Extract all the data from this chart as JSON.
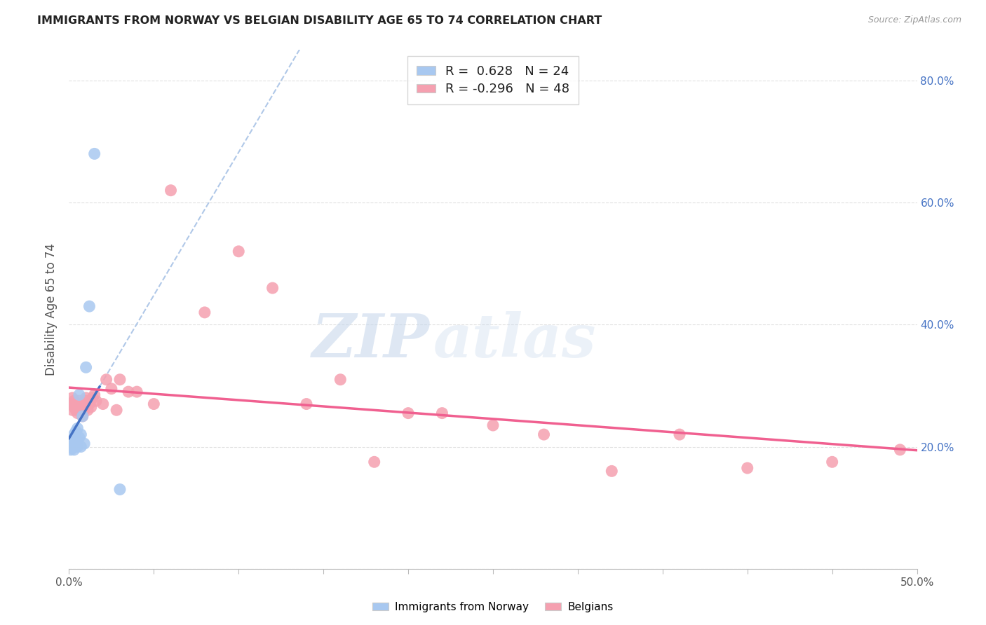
{
  "title": "IMMIGRANTS FROM NORWAY VS BELGIAN DISABILITY AGE 65 TO 74 CORRELATION CHART",
  "source": "Source: ZipAtlas.com",
  "ylabel": "Disability Age 65 to 74",
  "xlim": [
    0.0,
    0.5
  ],
  "ylim": [
    0.0,
    0.85
  ],
  "norway_R": 0.628,
  "norway_N": 24,
  "belgian_R": -0.296,
  "belgian_N": 48,
  "norway_color": "#a8c8f0",
  "belgian_color": "#f5a0b0",
  "norway_line_color": "#4472c4",
  "belgian_line_color": "#f06090",
  "trend_ext_color": "#b0c8e8",
  "watermark_zip": "ZIP",
  "watermark_atlas": "atlas",
  "background_color": "#ffffff",
  "grid_color": "#dddddd",
  "norway_points_x": [
    0.001,
    0.001,
    0.002,
    0.002,
    0.002,
    0.003,
    0.003,
    0.003,
    0.004,
    0.004,
    0.004,
    0.005,
    0.005,
    0.005,
    0.006,
    0.006,
    0.007,
    0.007,
    0.008,
    0.009,
    0.01,
    0.012,
    0.015,
    0.03
  ],
  "norway_points_y": [
    0.195,
    0.2,
    0.198,
    0.205,
    0.21,
    0.195,
    0.205,
    0.22,
    0.2,
    0.215,
    0.225,
    0.2,
    0.21,
    0.23,
    0.215,
    0.285,
    0.2,
    0.22,
    0.25,
    0.205,
    0.33,
    0.43,
    0.68,
    0.13
  ],
  "belgian_points_x": [
    0.001,
    0.002,
    0.002,
    0.003,
    0.003,
    0.004,
    0.004,
    0.005,
    0.005,
    0.006,
    0.006,
    0.007,
    0.007,
    0.008,
    0.008,
    0.009,
    0.01,
    0.01,
    0.011,
    0.012,
    0.013,
    0.014,
    0.015,
    0.016,
    0.02,
    0.022,
    0.025,
    0.028,
    0.03,
    0.035,
    0.04,
    0.05,
    0.06,
    0.08,
    0.1,
    0.12,
    0.14,
    0.16,
    0.18,
    0.2,
    0.22,
    0.25,
    0.28,
    0.32,
    0.36,
    0.4,
    0.45,
    0.49
  ],
  "belgian_points_y": [
    0.27,
    0.26,
    0.28,
    0.265,
    0.275,
    0.26,
    0.27,
    0.255,
    0.265,
    0.26,
    0.275,
    0.26,
    0.27,
    0.25,
    0.265,
    0.26,
    0.275,
    0.28,
    0.26,
    0.27,
    0.265,
    0.28,
    0.285,
    0.275,
    0.27,
    0.31,
    0.295,
    0.26,
    0.31,
    0.29,
    0.29,
    0.27,
    0.62,
    0.42,
    0.52,
    0.46,
    0.27,
    0.31,
    0.175,
    0.255,
    0.255,
    0.235,
    0.22,
    0.16,
    0.22,
    0.165,
    0.175,
    0.195
  ]
}
